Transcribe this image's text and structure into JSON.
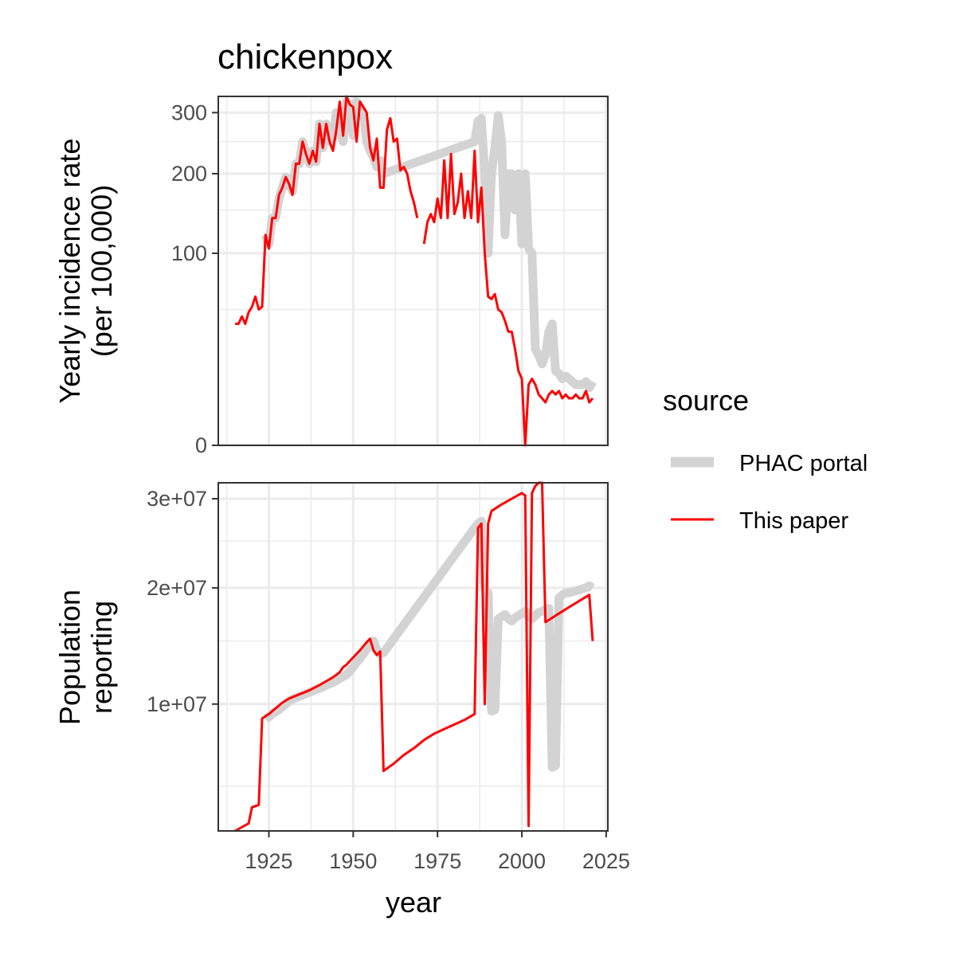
{
  "chart_data": {
    "type": "line",
    "title": "chickenpox",
    "xlabel": "year",
    "x_ticks": [
      1925,
      1950,
      1975,
      2000,
      2025
    ],
    "xlim": [
      1910,
      2025
    ],
    "colors": {
      "PHAC portal": "#d3d3d3",
      "This paper": "#ff0000"
    },
    "legend": {
      "title": "source",
      "position": "right",
      "entries": [
        "PHAC portal",
        "This paper"
      ]
    },
    "grid": true,
    "panels": [
      {
        "id": "incidence",
        "ylabel": "Yearly incidence rate\n(per 100,000)",
        "y_scale": "sqrt",
        "ylim": [
          0,
          330
        ],
        "y_ticks": [
          0,
          100,
          200,
          300
        ],
        "y_tick_labels": [
          "0",
          "100",
          "200",
          "300"
        ],
        "series": [
          {
            "name": "PHAC portal",
            "x": [
              1924,
              1925,
              1926,
              1927,
              1928,
              1929,
              1930,
              1931,
              1932,
              1933,
              1934,
              1935,
              1936,
              1937,
              1938,
              1939,
              1940,
              1941,
              1942,
              1943,
              1944,
              1945,
              1946,
              1947,
              1948,
              1949,
              1950,
              1951,
              1952,
              1953,
              1954,
              1955,
              1956,
              1957,
              1958,
              1959,
              1986,
              1987,
              1988,
              1989,
              1990,
              1991,
              1992,
              1993,
              1994,
              1995,
              1996,
              1997,
              1998,
              1999,
              2000,
              2001,
              2002,
              2003,
              2004,
              2005,
              2006,
              2007,
              2008,
              2009,
              2010,
              2011,
              2012,
              2013,
              2014,
              2015,
              2016,
              2017,
              2018,
              2019,
              2020,
              2021
            ],
            "values": [
              120,
              110,
              140,
              140,
              165,
              180,
              195,
              185,
              175,
              215,
              215,
              250,
              230,
              215,
              235,
              218,
              280,
              240,
              280,
              250,
              255,
              300,
              275,
              250,
              320,
              315,
              260,
              320,
              310,
              300,
              250,
              235,
              225,
              210,
              220,
              200,
              250,
              285,
              290,
              200,
              100,
              200,
              240,
              295,
              250,
              120,
              200,
              200,
              150,
              200,
              110,
              200,
              105,
              100,
              25,
              22,
              18,
              22,
              35,
              40,
              15,
              14,
              12,
              13,
              12,
              11,
              10,
              10,
              10,
              11,
              9,
              11
            ]
          },
          {
            "name": "This paper",
            "x": [
              1915,
              1916,
              1917,
              1918,
              1919,
              1920,
              1921,
              1922,
              1923,
              1924,
              1925,
              1926,
              1927,
              1928,
              1929,
              1930,
              1931,
              1932,
              1933,
              1934,
              1935,
              1936,
              1937,
              1938,
              1939,
              1940,
              1941,
              1942,
              1943,
              1944,
              1945,
              1946,
              1947,
              1948,
              1949,
              1950,
              1951,
              1952,
              1953,
              1954,
              1955,
              1956,
              1957,
              1958,
              1959,
              1960,
              1961,
              1962,
              1963,
              1964,
              1965,
              1966,
              1967,
              1968,
              1969,
              null,
              1971,
              1972,
              1973,
              1974,
              1975,
              1976,
              1977,
              1978,
              1979,
              1980,
              1981,
              1982,
              1983,
              1984,
              1985,
              1986,
              1987,
              1988,
              1989,
              1990,
              1991,
              1992,
              1993,
              1994,
              1995,
              1996,
              1997,
              1998,
              1999,
              2000,
              2001,
              2002,
              2003,
              2004,
              2005,
              2006,
              2007,
              2008,
              2009,
              2010,
              2011,
              2012,
              2013,
              2014,
              2015,
              2016,
              2017,
              2018,
              2019,
              2020,
              2021
            ],
            "values": [
              40,
              40,
              45,
              40,
              48,
              52,
              60,
              50,
              52,
              120,
              105,
              140,
              140,
              170,
              180,
              195,
              185,
              170,
              215,
              215,
              250,
              230,
              215,
              235,
              218,
              280,
              240,
              280,
              250,
              235,
              270,
              320,
              260,
              330,
              315,
              310,
              250,
              320,
              310,
              300,
              240,
              220,
              255,
              180,
              180,
              270,
              290,
              250,
              255,
              205,
              210,
              200,
              175,
              160,
              140,
              null,
              110,
              135,
              145,
              135,
              165,
              140,
              220,
              140,
              230,
              145,
              160,
              200,
              140,
              175,
              140,
              235,
              135,
              180,
              100,
              60,
              58,
              62,
              50,
              48,
              42,
              35,
              35,
              25,
              15,
              12,
              0,
              10,
              12,
              10,
              7,
              6,
              5,
              7,
              8,
              7,
              8,
              6,
              7,
              6,
              6,
              7,
              6,
              6,
              8,
              5,
              6
            ]
          }
        ]
      },
      {
        "id": "population",
        "ylabel": "Population\nreporting",
        "y_scale": "sqrt",
        "ylim": [
          3000000,
          32000000
        ],
        "y_ticks": [
          10000000,
          20000000,
          30000000
        ],
        "y_tick_labels": [
          "1e+07",
          "2e+07",
          "3e+07"
        ],
        "series": [
          {
            "name": "PHAC portal",
            "x": [
              1924,
              1925,
              1926,
              1927,
              1928,
              1929,
              1930,
              1931,
              1932,
              1933,
              1934,
              1935,
              1936,
              1937,
              1938,
              1939,
              1940,
              1941,
              1942,
              1943,
              1944,
              1945,
              1946,
              1947,
              1948,
              1949,
              1950,
              1951,
              1952,
              1953,
              1954,
              1955,
              1956,
              1957,
              1958,
              1959,
              1986,
              1987,
              1988,
              1989,
              1990,
              1991,
              1992,
              1993,
              1994,
              1995,
              1996,
              1997,
              1998,
              1999,
              2000,
              2001,
              2002,
              2003,
              2004,
              2005,
              2006,
              2007,
              2008,
              2009,
              2010,
              2011,
              2012,
              2013,
              2014,
              2015,
              2016,
              2017,
              2018,
              2019,
              2020,
              2021
            ],
            "values": [
              9000000,
              9100000,
              9300000,
              9450000,
              9600000,
              9800000,
              10000000,
              10200000,
              10350000,
              10450000,
              10550000,
              10650000,
              10750000,
              10850000,
              10950000,
              11050000,
              11150000,
              11250000,
              11400000,
              11500000,
              11600000,
              11750000,
              11900000,
              12050000,
              12200000,
              12500000,
              12800000,
              13200000,
              13500000,
              13900000,
              14300000,
              14700000,
              15000000,
              14200000,
              13900000,
              14000000,
              26500000,
              27000000,
              27300000,
              20000000,
              19500000,
              9500000,
              9600000,
              17000000,
              17200000,
              17400000,
              17000000,
              16800000,
              17100000,
              17300000,
              17500000,
              17700000,
              17200000,
              17000000,
              17300000,
              17600000,
              17700000,
              17900000,
              18000000,
              6000000,
              6100000,
              19000000,
              19300000,
              19500000,
              19500000,
              19600000,
              19700000,
              19800000,
              19900000,
              20000000,
              20200000,
              20000000
            ]
          },
          {
            "name": "This paper",
            "x": [
              1915,
              1919,
              1920,
              1922,
              1923,
              1925,
              1927,
              1929,
              1931,
              1934,
              1937,
              1940,
              1942,
              1944,
              1946,
              1947,
              1948,
              1950,
              1952,
              1954,
              1955,
              1956,
              1957,
              1958,
              1959,
              1962,
              1965,
              1968,
              1971,
              1974,
              1977,
              1980,
              1983,
              1986,
              1987,
              1988,
              1989,
              1990,
              1991,
              1994,
              1997,
              2000,
              2001,
              2002,
              2003,
              2004,
              2005,
              2006,
              2007,
              2008,
              2011,
              2014,
              2017,
              2020,
              2021
            ],
            "values": [
              3000000,
              3300000,
              4000000,
              4100000,
              9000000,
              9300000,
              9700000,
              10100000,
              10400000,
              10700000,
              11000000,
              11400000,
              11700000,
              12000000,
              12400000,
              12800000,
              13000000,
              13600000,
              14200000,
              14900000,
              15200000,
              14200000,
              13800000,
              14100000,
              5800000,
              6200000,
              6700000,
              7100000,
              7600000,
              8000000,
              8300000,
              8600000,
              8900000,
              9300000,
              26500000,
              27000000,
              10000000,
              27000000,
              28500000,
              29300000,
              30000000,
              30700000,
              30400000,
              3200000,
              30700000,
              31600000,
              32000000,
              32200000,
              16700000,
              16900000,
              17500000,
              18100000,
              18700000,
              19300000,
              15000000
            ]
          }
        ]
      }
    ]
  }
}
